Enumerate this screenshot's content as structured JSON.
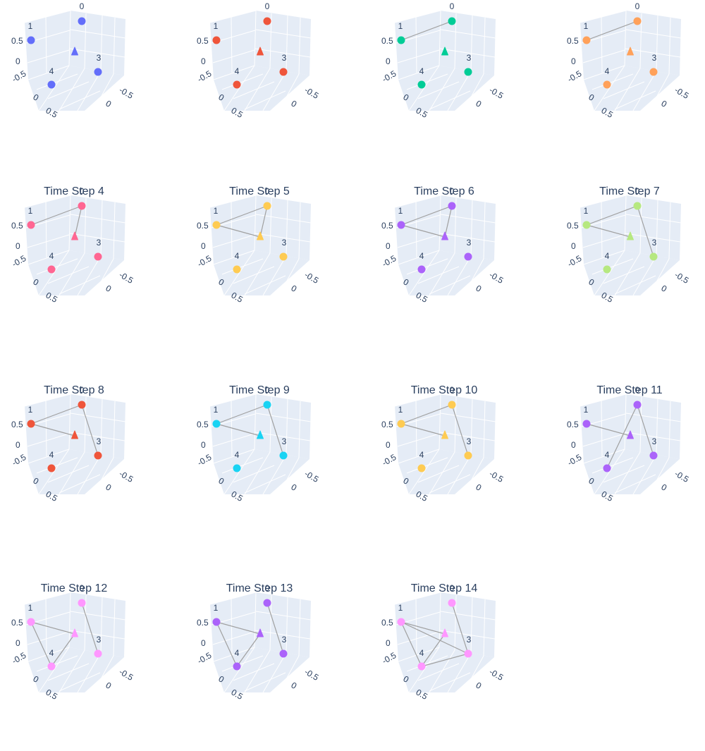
{
  "chart_data": {
    "type": "network-3d-scatter",
    "layout": "4 columns x 4 rows of 3D subplots",
    "shared_axes": {
      "left_axis_tick_labels": [
        "0.5",
        "0",
        "-0.5",
        "0",
        "0.5"
      ],
      "right_axis_tick_labels": [
        "-0.5",
        "0"
      ]
    },
    "nodes": [
      {
        "id": "0",
        "label": "0",
        "marker": "circle"
      },
      {
        "id": "1",
        "label": "1",
        "marker": "circle"
      },
      {
        "id": "2",
        "label": "",
        "marker": "triangle"
      },
      {
        "id": "3",
        "label": "3",
        "marker": "circle"
      },
      {
        "id": "4",
        "label": "4",
        "marker": "circle"
      }
    ],
    "edge_color": "#a0a0a0",
    "background_color": "#e5ecf6",
    "time_steps": [
      {
        "title": "",
        "color": "#636efa",
        "edges": []
      },
      {
        "title": "",
        "color": "#ef553b",
        "edges": []
      },
      {
        "title": "",
        "color": "#00cc96",
        "edges": [
          [
            "0",
            "1"
          ]
        ]
      },
      {
        "title": "",
        "color": "#ffa15a",
        "edges": [
          [
            "0",
            "1"
          ]
        ]
      },
      {
        "title": "Time Step 4",
        "color": "#ff6692",
        "edges": [
          [
            "0",
            "1"
          ],
          [
            "0",
            "2"
          ]
        ]
      },
      {
        "title": "Time Step 5",
        "color": "#fecb52",
        "edges": [
          [
            "0",
            "1"
          ],
          [
            "1",
            "2"
          ],
          [
            "0",
            "2"
          ]
        ]
      },
      {
        "title": "Time Step 6",
        "color": "#ab63fa",
        "edges": [
          [
            "0",
            "1"
          ],
          [
            "1",
            "2"
          ],
          [
            "0",
            "2"
          ]
        ]
      },
      {
        "title": "Time Step 7",
        "color": "#b6e880",
        "edges": [
          [
            "0",
            "1"
          ],
          [
            "1",
            "2"
          ],
          [
            "0",
            "3"
          ]
        ]
      },
      {
        "title": "Time Step 8",
        "color": "#ef553b",
        "edges": [
          [
            "0",
            "1"
          ],
          [
            "1",
            "2"
          ],
          [
            "0",
            "3"
          ]
        ]
      },
      {
        "title": "Time Step 9",
        "color": "#19d3f3",
        "edges": [
          [
            "0",
            "1"
          ],
          [
            "1",
            "2"
          ],
          [
            "0",
            "3"
          ]
        ]
      },
      {
        "title": "Time Step 10",
        "color": "#fecb52",
        "edges": [
          [
            "0",
            "1"
          ],
          [
            "1",
            "2"
          ],
          [
            "0",
            "3"
          ]
        ]
      },
      {
        "title": "Time Step 11",
        "color": "#ab63fa",
        "edges": [
          [
            "0",
            "4"
          ],
          [
            "1",
            "2"
          ],
          [
            "0",
            "3"
          ]
        ]
      },
      {
        "title": "Time Step 12",
        "color": "#ff97ff",
        "edges": [
          [
            "0",
            "3"
          ],
          [
            "1",
            "2"
          ],
          [
            "1",
            "4"
          ],
          [
            "2",
            "4"
          ]
        ]
      },
      {
        "title": "Time Step 13",
        "color": "#ab63fa",
        "edges": [
          [
            "0",
            "3"
          ],
          [
            "1",
            "2"
          ],
          [
            "1",
            "4"
          ],
          [
            "2",
            "4"
          ]
        ]
      },
      {
        "title": "Time Step 14",
        "color": "#ff97ff",
        "edges": [
          [
            "0",
            "3"
          ],
          [
            "1",
            "2"
          ],
          [
            "1",
            "4"
          ],
          [
            "2",
            "4"
          ],
          [
            "1",
            "3"
          ],
          [
            "4",
            "3"
          ]
        ]
      }
    ]
  }
}
